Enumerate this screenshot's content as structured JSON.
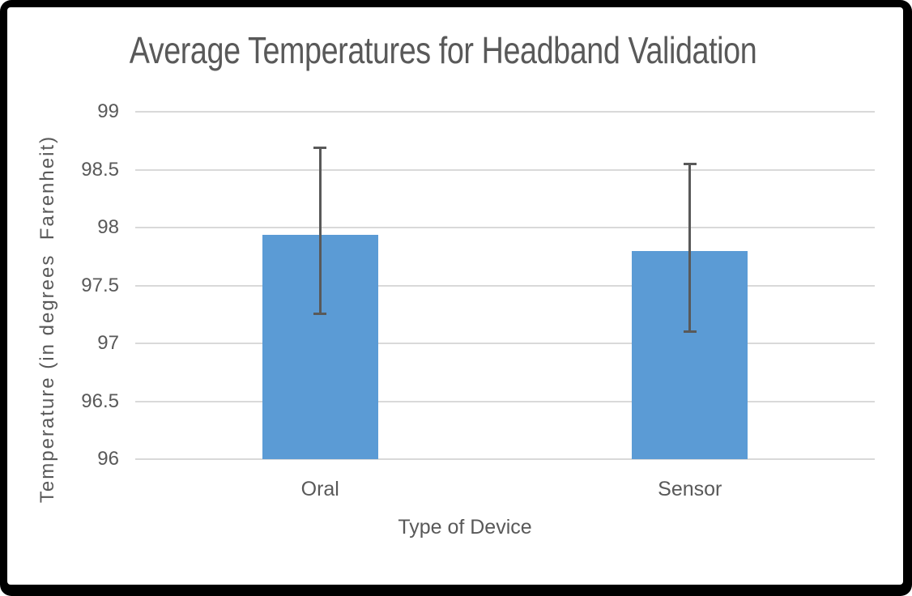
{
  "frame": {
    "border_color": "#000000",
    "background": "#ffffff"
  },
  "chart_data": {
    "type": "bar",
    "title": "Average Temperatures for Headband Validation",
    "xlabel": "Type of Device",
    "ylabel": "Temperature (in degrees  Farenheit)",
    "categories": [
      "Oral",
      "Sensor"
    ],
    "values": [
      97.94,
      97.8
    ],
    "error_bars": [
      {
        "low": 97.25,
        "high": 98.69
      },
      {
        "low": 97.1,
        "high": 98.55
      }
    ],
    "ylim": [
      96,
      99
    ],
    "yticks": [
      96,
      96.5,
      97,
      97.5,
      98,
      98.5,
      99
    ],
    "ytick_labels": [
      "96",
      "96.5",
      "97",
      "97.5",
      "98",
      "98.5",
      "99"
    ],
    "grid": true,
    "legend": "none",
    "colors": {
      "bar": "#5B9BD5",
      "error_bar": "#595959",
      "gridline": "#D9D9D9",
      "axis_line": "#D9D9D9",
      "text": "#595959"
    }
  }
}
